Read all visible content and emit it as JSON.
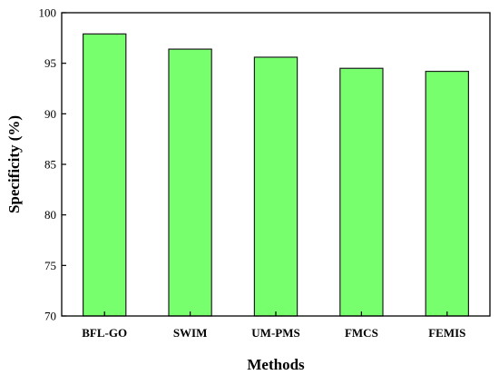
{
  "chart_data": {
    "type": "bar",
    "title": "",
    "xlabel": "Methods",
    "ylabel": "Specificity (%)",
    "categories": [
      "BFL-GO",
      "SWIM",
      "UM-PMS",
      "FMCS",
      "FEMIS"
    ],
    "values": [
      97.9,
      96.4,
      95.6,
      94.5,
      94.2
    ],
    "ylim": [
      70,
      100
    ],
    "yticks": [
      70,
      75,
      80,
      85,
      90,
      95,
      100
    ],
    "grid": false,
    "legend": "none",
    "bar_color": "#77ff6e",
    "bar_edge_color": "#1f1f1f"
  }
}
